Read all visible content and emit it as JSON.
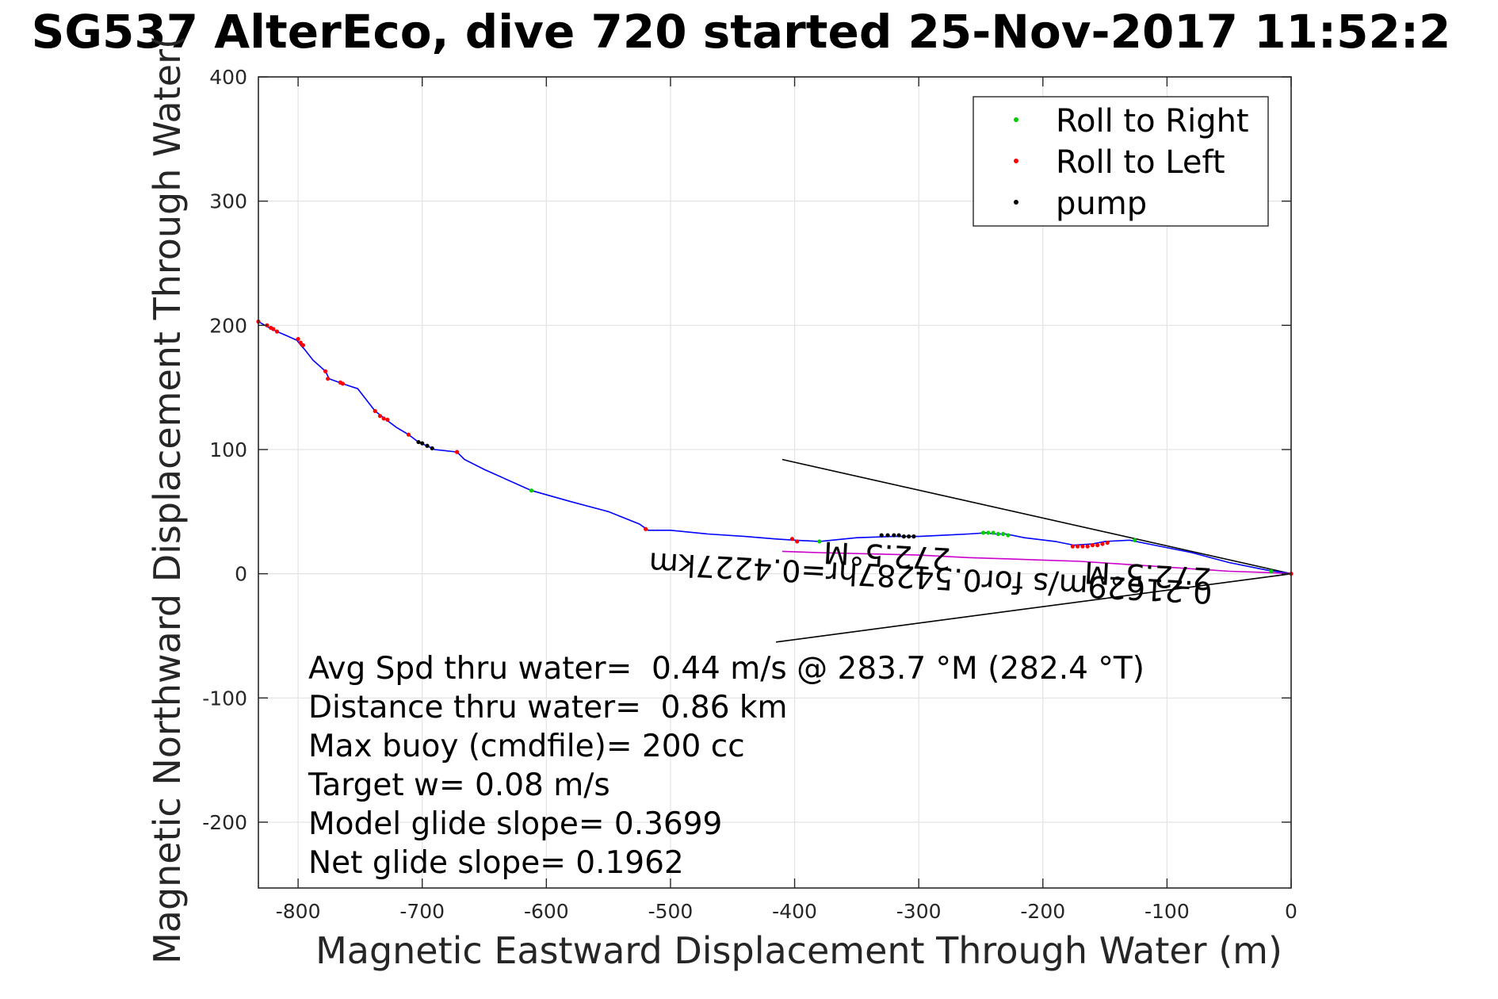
{
  "chart_data": {
    "type": "scatter",
    "title": "SG537 AlterEco, dive 720 started 25-Nov-2017 11:52:2",
    "xlabel": "Magnetic Eastward Displacement Through Water (m)",
    "ylabel": "Magnetic Northward Displacement Through Water(",
    "xlim": [
      -832,
      0
    ],
    "ylim": [
      -253,
      400
    ],
    "xticks": [
      -800,
      -700,
      -600,
      -500,
      -400,
      -300,
      -200,
      -100,
      0
    ],
    "yticks": [
      -200,
      -100,
      0,
      100,
      200,
      300,
      400
    ],
    "xtick_labels": [
      "-800",
      "-700",
      "-600",
      "-500",
      "-400",
      "-300",
      "-200",
      "-100",
      "0"
    ],
    "ytick_labels": [
      "-200",
      "-100",
      "0",
      "100",
      "200",
      "300",
      "400"
    ],
    "grid": true,
    "legend": {
      "placement": "top-right",
      "entries": [
        {
          "label": "Roll to Right",
          "color": "#00cc00"
        },
        {
          "label": "Roll to Left",
          "color": "#ff0000"
        },
        {
          "label": "pump",
          "color": "#000000"
        }
      ]
    },
    "series": [
      {
        "style": "line",
        "color": "#0000ff",
        "x": [
          -832,
          -825,
          -817,
          -810,
          -801,
          -797,
          -795,
          -788,
          -778,
          -775,
          -764,
          -752,
          -738,
          -729,
          -721,
          -711,
          -703,
          -694,
          -690,
          -672,
          -666,
          -650,
          -612,
          -580,
          -550,
          -525,
          -518,
          -500,
          -470,
          -440,
          -415,
          -400,
          -380,
          -350,
          -320,
          -300,
          -280,
          -260,
          -245,
          -240,
          -230,
          -215,
          -190,
          -175,
          -160,
          -150,
          -130,
          -110,
          -80,
          -50,
          -20,
          0
        ],
        "y": [
          203,
          199,
          195,
          192,
          188,
          183,
          181,
          172,
          163,
          157,
          153,
          149,
          131,
          124,
          118,
          112,
          106,
          102,
          100,
          98,
          92,
          84,
          67,
          58,
          50,
          40,
          35,
          35,
          32,
          30,
          28,
          27,
          26,
          29,
          30,
          30,
          31,
          32,
          33,
          32,
          32,
          29,
          26,
          23,
          24,
          26,
          27,
          23,
          17,
          9,
          3,
          0
        ]
      },
      {
        "style": "line",
        "color": "#cc00cc",
        "x": [
          -410,
          -380,
          -340,
          -300,
          -260,
          -230,
          -200,
          -170,
          -140,
          -110,
          -80,
          -50,
          -20,
          0
        ],
        "y": [
          18,
          17,
          16,
          15,
          13,
          12,
          11,
          10,
          8,
          6,
          4,
          2,
          1,
          0
        ]
      },
      {
        "style": "points",
        "name": "Roll to Right",
        "color": "#00cc00",
        "x": [
          -612,
          -380,
          -248,
          -244,
          -240,
          -236,
          -232,
          -228,
          -126,
          -16
        ],
        "y": [
          67,
          26,
          33,
          33,
          33,
          32,
          32,
          31,
          27,
          2
        ]
      },
      {
        "style": "points",
        "name": "Roll to Left",
        "color": "#ff0000",
        "x": [
          -832,
          -825,
          -822,
          -820,
          -817,
          -800,
          -798,
          -796,
          -778,
          -776,
          -766,
          -764,
          -738,
          -734,
          -731,
          -728,
          -711,
          -672,
          -520,
          -402,
          -398,
          -176,
          -172,
          -168,
          -164,
          -160,
          -156,
          -152,
          -148,
          0
        ],
        "y": [
          203,
          200,
          198,
          197,
          195,
          189,
          186,
          184,
          163,
          157,
          154,
          153,
          131,
          127,
          125,
          124,
          112,
          98,
          36,
          28,
          26,
          22,
          22,
          22,
          22,
          23,
          23,
          24,
          25,
          0
        ]
      },
      {
        "style": "points",
        "name": "pump",
        "color": "#000000",
        "x": [
          -703,
          -700,
          -696,
          -692,
          -330,
          -325,
          -320,
          -316,
          -312,
          -308,
          -304
        ],
        "y": [
          106,
          105,
          103,
          101,
          31,
          31,
          31,
          31,
          30,
          30,
          30
        ]
      }
    ],
    "reference_lines": [
      {
        "x": [
          0,
          -410
        ],
        "y": [
          0,
          92
        ],
        "color": "#000000"
      },
      {
        "x": [
          0,
          -415
        ],
        "y": [
          0,
          -55
        ],
        "color": "#000000"
      }
    ],
    "flipped_labels": [
      {
        "text": "272.5°M",
        "x": -325,
        "y": 23
      },
      {
        "text": "0.21629m/s for0.54287hr=0.4227km",
        "x": -290,
        "y": 5
      },
      {
        "text": "272.5°M",
        "x": -115,
        "y": 7
      }
    ],
    "annotations": [
      "Avg Spd thru water=  0.44 m/s @ 283.7 °M (282.4 °T)",
      "Distance thru water=  0.86 km",
      "Max buoy (cmdfile)= 200 cc",
      "Target w= 0.08 m/s",
      "Model glide slope= 0.3699",
      "Net glide slope= 0.1962"
    ]
  }
}
